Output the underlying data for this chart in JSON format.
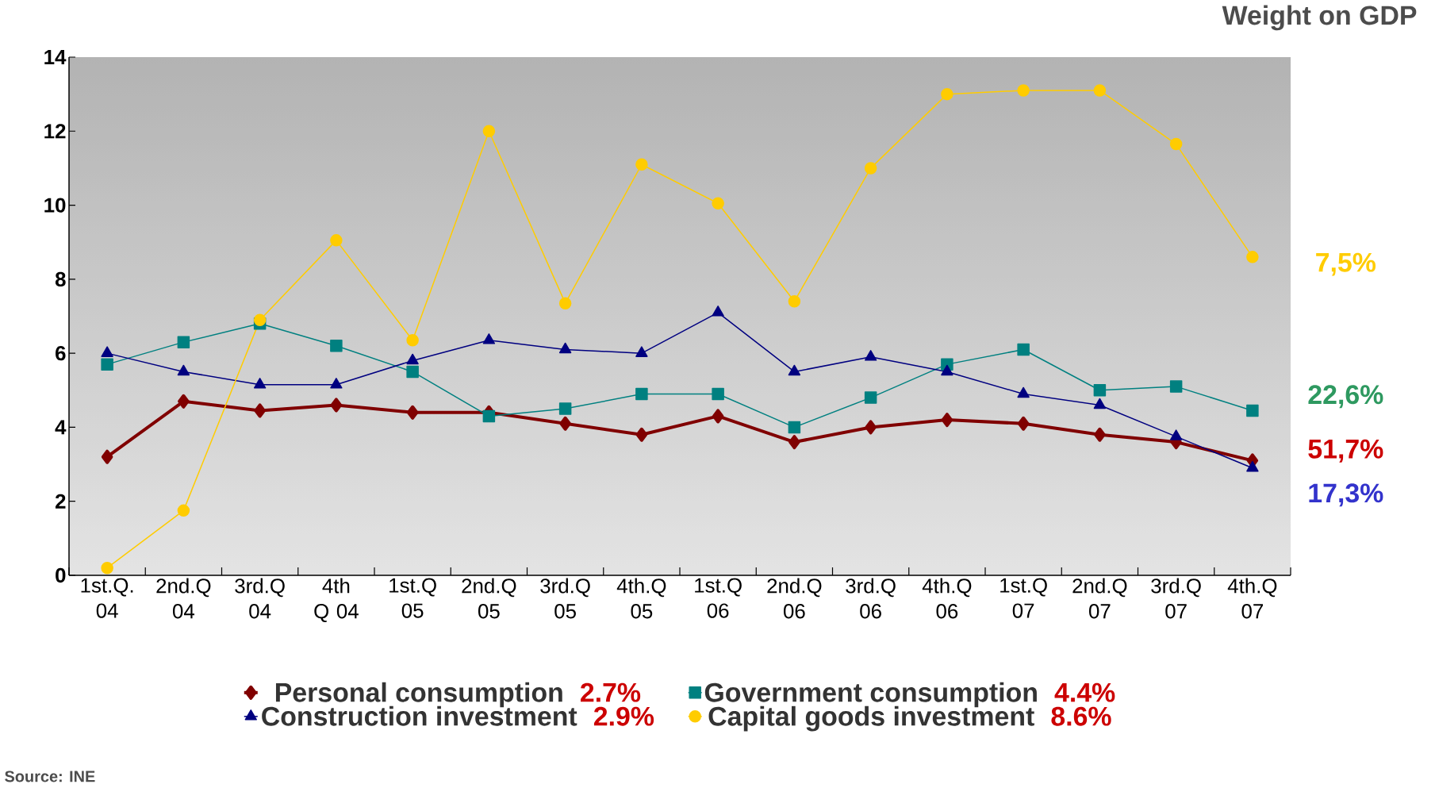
{
  "chart_data": {
    "type": "line",
    "title": "Weight on GDP",
    "categories": [
      "1st.Q. 04",
      "2nd.Q 04",
      "3rd.Q 04",
      "4th Q 04",
      "1st.Q 05",
      "2nd.Q 05",
      "3rd.Q 05",
      "4th.Q 05",
      "1st.Q 06",
      "2nd.Q 06",
      "3rd.Q 06",
      "4th.Q 06",
      "1st.Q 07",
      "2nd.Q 07",
      "3rd.Q 07",
      "4th.Q 07"
    ],
    "series": [
      {
        "name": "Personal consumption",
        "color": "#800000",
        "marker": "diamond",
        "values": [
          3.2,
          4.7,
          4.45,
          4.6,
          4.4,
          4.4,
          4.1,
          3.8,
          4.3,
          3.6,
          4.0,
          4.2,
          4.1,
          3.8,
          3.6,
          3.1
        ]
      },
      {
        "name": "Government consumption",
        "color": "#008080",
        "marker": "square",
        "values": [
          5.7,
          6.3,
          6.8,
          6.2,
          5.5,
          4.3,
          4.5,
          4.9,
          4.9,
          4.0,
          4.8,
          5.7,
          6.1,
          5.0,
          5.1,
          4.45
        ]
      },
      {
        "name": "Construction investment",
        "color": "#000080",
        "marker": "triangle",
        "values": [
          6.0,
          5.5,
          5.15,
          5.15,
          5.8,
          6.35,
          6.1,
          6.0,
          7.1,
          5.5,
          5.9,
          5.5,
          4.9,
          4.6,
          3.75,
          2.9
        ]
      },
      {
        "name": "Capital goods investment",
        "color": "#ffcc00",
        "marker": "circle",
        "values": [
          0.2,
          1.75,
          6.9,
          9.05,
          6.35,
          12.0,
          7.35,
          11.1,
          10.05,
          7.4,
          11.0,
          13.0,
          13.1,
          13.1,
          11.65,
          8.6
        ]
      }
    ],
    "ylim": [
      0,
      14
    ],
    "yticks": [
      0,
      2,
      4,
      6,
      8,
      10,
      12,
      14
    ],
    "grid": false,
    "legend": "bottom",
    "line_style": "solid",
    "annotations": [
      "7,5%",
      "22,6%",
      "51,7%",
      "17,3%",
      "2.7%",
      "4.4%",
      "2.9%",
      "8.6%",
      "Source: INE"
    ]
  }
}
